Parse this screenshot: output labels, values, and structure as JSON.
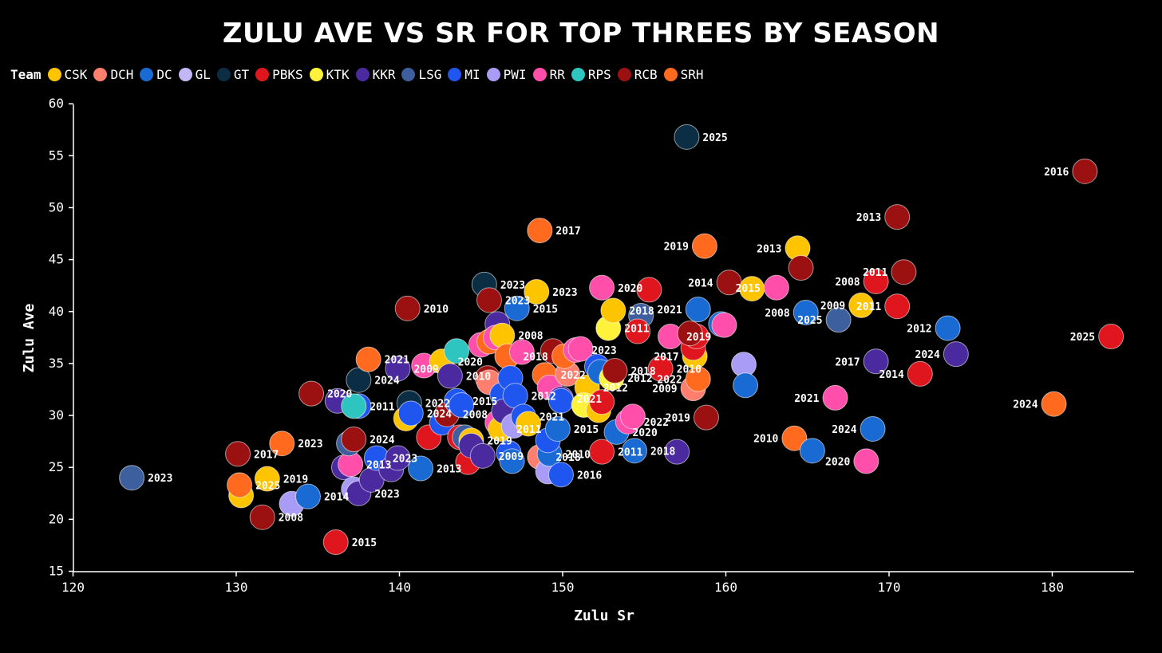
{
  "chart_data": {
    "type": "scatter",
    "title": "ZULU AVE VS SR FOR TOP THREES BY SEASON",
    "xlabel": "Zulu Sr",
    "ylabel": "Zulu Ave",
    "xlim": [
      120,
      185
    ],
    "ylim": [
      15,
      60
    ],
    "xticks": [
      "120",
      "130",
      "140",
      "150",
      "160",
      "170",
      "180"
    ],
    "yticks": [
      "15",
      "20",
      "25",
      "30",
      "35",
      "40",
      "45",
      "50",
      "55",
      "60"
    ],
    "grid": false,
    "legend": {
      "title": "Team",
      "placement": "top-left",
      "entries": [
        {
          "team": "CSK",
          "color": "#FFC400"
        },
        {
          "team": "DCH",
          "color": "#FF7F6E"
        },
        {
          "team": "DC",
          "color": "#1A6AD4"
        },
        {
          "team": "GL",
          "color": "#C3B8F5"
        },
        {
          "team": "GT",
          "color": "#0B2E45"
        },
        {
          "team": "PBKS",
          "color": "#E0161E"
        },
        {
          "team": "KTK",
          "color": "#FFF23A"
        },
        {
          "team": "KKR",
          "color": "#4A2A9E"
        },
        {
          "team": "LSG",
          "color": "#3E5F9E"
        },
        {
          "team": "MI",
          "color": "#2056F0"
        },
        {
          "team": "PWI",
          "color": "#A99CF7"
        },
        {
          "team": "RR",
          "color": "#FF4FAA"
        },
        {
          "team": "RPS",
          "color": "#2EC4C0"
        },
        {
          "team": "RCB",
          "color": "#9B1010"
        },
        {
          "team": "SRH",
          "color": "#FF6A1F"
        }
      ]
    },
    "points": [
      {
        "team": "LSG",
        "x": 123.6,
        "y": 24.0,
        "label": "2023"
      },
      {
        "team": "CSK",
        "x": 130.3,
        "y": 22.3,
        "label": ""
      },
      {
        "team": "SRH",
        "x": 130.2,
        "y": 23.3,
        "label": "2025"
      },
      {
        "team": "RCB",
        "x": 130.1,
        "y": 26.3,
        "label": "2017"
      },
      {
        "team": "RCB",
        "x": 131.6,
        "y": 20.2,
        "label": "2008"
      },
      {
        "team": "CSK",
        "x": 131.9,
        "y": 23.9,
        "label": "2019"
      },
      {
        "team": "SRH",
        "x": 132.8,
        "y": 27.3,
        "label": "2023"
      },
      {
        "team": "PWI",
        "x": 133.4,
        "y": 21.5,
        "label": ""
      },
      {
        "team": "DC",
        "x": 134.4,
        "y": 22.2,
        "label": "2014"
      },
      {
        "team": "RCB",
        "x": 134.6,
        "y": 32.1,
        "label": "2020"
      },
      {
        "team": "KKR",
        "x": 136.2,
        "y": 31.4,
        "label": ""
      },
      {
        "team": "PBKS",
        "x": 136.1,
        "y": 17.8,
        "label": "2015"
      },
      {
        "team": "KKR",
        "x": 136.6,
        "y": 25.0,
        "label": ""
      },
      {
        "team": "RR",
        "x": 137.0,
        "y": 25.3,
        "label": "2013"
      },
      {
        "team": "LSG",
        "x": 136.9,
        "y": 27.3,
        "label": ""
      },
      {
        "team": "RCB",
        "x": 137.2,
        "y": 27.7,
        "label": "2024"
      },
      {
        "team": "MI",
        "x": 137.5,
        "y": 30.9,
        "label": ""
      },
      {
        "team": "RPS",
        "x": 137.2,
        "y": 30.9,
        "label": "2011"
      },
      {
        "team": "GT",
        "x": 137.5,
        "y": 33.4,
        "label": "2024"
      },
      {
        "team": "PWI",
        "x": 137.2,
        "y": 22.9,
        "label": ""
      },
      {
        "team": "KKR",
        "x": 137.5,
        "y": 22.5,
        "label": "2023"
      },
      {
        "team": "SRH",
        "x": 138.1,
        "y": 35.4,
        "label": "2021"
      },
      {
        "team": "KKR",
        "x": 138.3,
        "y": 23.8,
        "label": ""
      },
      {
        "team": "MI",
        "x": 138.6,
        "y": 25.9,
        "label": "2023"
      },
      {
        "team": "KKR",
        "x": 139.5,
        "y": 24.8,
        "label": ""
      },
      {
        "team": "KKR",
        "x": 139.9,
        "y": 25.9,
        "label": ""
      },
      {
        "team": "KKR",
        "x": 139.9,
        "y": 34.5,
        "label": "2009"
      },
      {
        "team": "RCB",
        "x": 140.5,
        "y": 40.3,
        "label": "2010"
      },
      {
        "team": "CSK",
        "x": 140.4,
        "y": 29.7,
        "label": ""
      },
      {
        "team": "GT",
        "x": 140.6,
        "y": 31.2,
        "label": "2022"
      },
      {
        "team": "MI",
        "x": 140.7,
        "y": 30.2,
        "label": "2024"
      },
      {
        "team": "DC",
        "x": 141.3,
        "y": 24.9,
        "label": "2013"
      },
      {
        "team": "RR",
        "x": 141.5,
        "y": 34.8,
        "label": ""
      },
      {
        "team": "PBKS",
        "x": 141.8,
        "y": 27.9,
        "label": ""
      },
      {
        "team": "CSK",
        "x": 142.6,
        "y": 35.2,
        "label": "2020"
      },
      {
        "team": "MI",
        "x": 142.6,
        "y": 29.3,
        "label": ""
      },
      {
        "team": "RCB",
        "x": 142.9,
        "y": 30.1,
        "label": "2008"
      },
      {
        "team": "KKR",
        "x": 143.1,
        "y": 33.8,
        "label": "2010"
      },
      {
        "team": "RPS",
        "x": 143.5,
        "y": 36.2,
        "label": ""
      },
      {
        "team": "MI",
        "x": 143.5,
        "y": 31.4,
        "label": "2015"
      },
      {
        "team": "MI",
        "x": 143.8,
        "y": 31.0,
        "label": ""
      },
      {
        "team": "PBKS",
        "x": 143.7,
        "y": 27.9,
        "label": ""
      },
      {
        "team": "LSG",
        "x": 144.0,
        "y": 27.9,
        "label": ""
      },
      {
        "team": "PBKS",
        "x": 144.2,
        "y": 25.5,
        "label": ""
      },
      {
        "team": "CSK",
        "x": 144.4,
        "y": 27.6,
        "label": "2019"
      },
      {
        "team": "KKR",
        "x": 144.4,
        "y": 27.1,
        "label": ""
      },
      {
        "team": "KKR",
        "x": 145.1,
        "y": 26.1,
        "label": "2009"
      },
      {
        "team": "RR",
        "x": 145.0,
        "y": 36.8,
        "label": ""
      },
      {
        "team": "GT",
        "x": 145.2,
        "y": 42.6,
        "label": "2023"
      },
      {
        "team": "RCB",
        "x": 145.5,
        "y": 41.1,
        "label": "2023"
      },
      {
        "team": "RCB",
        "x": 145.4,
        "y": 33.6,
        "label": ""
      },
      {
        "team": "DCH",
        "x": 145.5,
        "y": 33.2,
        "label": ""
      },
      {
        "team": "SRH",
        "x": 145.5,
        "y": 37.1,
        "label": ""
      },
      {
        "team": "KKR",
        "x": 146.0,
        "y": 38.8,
        "label": ""
      },
      {
        "team": "RR",
        "x": 145.9,
        "y": 37.5,
        "label": ""
      },
      {
        "team": "CSK",
        "x": 146.3,
        "y": 37.7,
        "label": "2008"
      },
      {
        "team": "RR",
        "x": 146.0,
        "y": 29.3,
        "label": ""
      },
      {
        "team": "CSK",
        "x": 146.2,
        "y": 28.7,
        "label": "2011"
      },
      {
        "team": "MI",
        "x": 146.3,
        "y": 32.0,
        "label": ""
      },
      {
        "team": "KKR",
        "x": 146.4,
        "y": 30.4,
        "label": ""
      },
      {
        "team": "MI",
        "x": 146.7,
        "y": 26.4,
        "label": ""
      },
      {
        "team": "DC",
        "x": 146.9,
        "y": 25.6,
        "label": ""
      },
      {
        "team": "SRH",
        "x": 146.6,
        "y": 35.7,
        "label": "2018"
      },
      {
        "team": "MI",
        "x": 146.8,
        "y": 33.6,
        "label": ""
      },
      {
        "team": "PWI",
        "x": 147.0,
        "y": 29.0,
        "label": ""
      },
      {
        "team": "MI",
        "x": 147.1,
        "y": 31.9,
        "label": "2012"
      },
      {
        "team": "DC",
        "x": 147.2,
        "y": 40.3,
        "label": "2015"
      },
      {
        "team": "RR",
        "x": 147.5,
        "y": 36.1,
        "label": ""
      },
      {
        "team": "MI",
        "x": 147.6,
        "y": 29.9,
        "label": "2021"
      },
      {
        "team": "CSK",
        "x": 147.9,
        "y": 29.2,
        "label": ""
      },
      {
        "team": "CSK",
        "x": 148.4,
        "y": 41.9,
        "label": "2023"
      },
      {
        "team": "DCH",
        "x": 148.6,
        "y": 26.0,
        "label": "2018"
      },
      {
        "team": "SRH",
        "x": 148.6,
        "y": 47.8,
        "label": "2017"
      },
      {
        "team": "PWI",
        "x": 149.1,
        "y": 24.6,
        "label": ""
      },
      {
        "team": "DC",
        "x": 149.2,
        "y": 26.3,
        "label": "2010"
      },
      {
        "team": "SRH",
        "x": 148.9,
        "y": 33.9,
        "label": "2022"
      },
      {
        "team": "RR",
        "x": 149.2,
        "y": 32.7,
        "label": ""
      },
      {
        "team": "MI",
        "x": 149.1,
        "y": 27.6,
        "label": ""
      },
      {
        "team": "RCB",
        "x": 149.4,
        "y": 36.2,
        "label": ""
      },
      {
        "team": "DC",
        "x": 149.7,
        "y": 28.7,
        "label": "2015"
      },
      {
        "team": "KKR",
        "x": 149.9,
        "y": 31.6,
        "label": "2021"
      },
      {
        "team": "MI",
        "x": 149.9,
        "y": 31.4,
        "label": ""
      },
      {
        "team": "MI",
        "x": 149.9,
        "y": 24.3,
        "label": "2016"
      },
      {
        "team": "DCH",
        "x": 150.3,
        "y": 34.0,
        "label": ""
      },
      {
        "team": "SRH",
        "x": 150.1,
        "y": 35.7,
        "label": ""
      },
      {
        "team": "RR",
        "x": 150.8,
        "y": 36.3,
        "label": "2023"
      },
      {
        "team": "RR",
        "x": 151.1,
        "y": 36.4,
        "label": ""
      },
      {
        "team": "CSK",
        "x": 151.5,
        "y": 32.7,
        "label": "2012"
      },
      {
        "team": "KTK",
        "x": 151.3,
        "y": 31.0,
        "label": ""
      },
      {
        "team": "MI",
        "x": 152.1,
        "y": 34.7,
        "label": ""
      },
      {
        "team": "DC",
        "x": 152.3,
        "y": 34.2,
        "label": ""
      },
      {
        "team": "CSK",
        "x": 152.2,
        "y": 30.5,
        "label": ""
      },
      {
        "team": "PBKS",
        "x": 152.4,
        "y": 26.5,
        "label": "2011"
      },
      {
        "team": "RR",
        "x": 152.4,
        "y": 42.3,
        "label": "2020"
      },
      {
        "team": "PBKS",
        "x": 152.4,
        "y": 31.3,
        "label": ""
      },
      {
        "team": "KTK",
        "x": 152.8,
        "y": 38.4,
        "label": "2011"
      },
      {
        "team": "CSK",
        "x": 153.1,
        "y": 40.1,
        "label": "2018"
      },
      {
        "team": "KTK",
        "x": 153.0,
        "y": 33.6,
        "label": "2012"
      },
      {
        "team": "RCB",
        "x": 153.2,
        "y": 34.3,
        "label": "2018"
      },
      {
        "team": "DC",
        "x": 153.3,
        "y": 28.4,
        "label": "2020"
      },
      {
        "team": "RR",
        "x": 154.0,
        "y": 29.4,
        "label": "2022"
      },
      {
        "team": "RR",
        "x": 154.3,
        "y": 29.9,
        "label": ""
      },
      {
        "team": "DC",
        "x": 154.4,
        "y": 26.6,
        "label": "2018"
      },
      {
        "team": "LSG",
        "x": 154.8,
        "y": 39.6,
        "label": ""
      },
      {
        "team": "PBKS",
        "x": 154.6,
        "y": 38.1,
        "label": ""
      },
      {
        "team": "PBKS",
        "x": 155.3,
        "y": 42.1,
        "label": ""
      },
      {
        "team": "PBKS",
        "x": 156.0,
        "y": 34.5,
        "label": "2010"
      },
      {
        "team": "RR",
        "x": 156.6,
        "y": 37.6,
        "label": "2019"
      },
      {
        "team": "KKR",
        "x": 157.0,
        "y": 26.5,
        "label": ""
      },
      {
        "team": "GT",
        "x": 157.6,
        "y": 56.8,
        "label": "2025"
      },
      {
        "team": "DC",
        "x": 158.3,
        "y": 40.2,
        "label": "2021"
      },
      {
        "team": "DCH",
        "x": 158.0,
        "y": 32.6,
        "label": "2009"
      },
      {
        "team": "SRH",
        "x": 158.3,
        "y": 33.5,
        "label": "2022"
      },
      {
        "team": "CSK",
        "x": 158.1,
        "y": 35.7,
        "label": "2017"
      },
      {
        "team": "PBKS",
        "x": 158.0,
        "y": 36.5,
        "label": ""
      },
      {
        "team": "PBKS",
        "x": 158.2,
        "y": 37.6,
        "label": ""
      },
      {
        "team": "RCB",
        "x": 157.8,
        "y": 37.9,
        "label": ""
      },
      {
        "team": "RCB",
        "x": 158.8,
        "y": 29.8,
        "label": "2019"
      },
      {
        "team": "SRH",
        "x": 158.7,
        "y": 46.3,
        "label": "2019"
      },
      {
        "team": "DC",
        "x": 159.7,
        "y": 38.8,
        "label": ""
      },
      {
        "team": "RR",
        "x": 159.9,
        "y": 38.7,
        "label": ""
      },
      {
        "team": "RCB",
        "x": 160.2,
        "y": 42.8,
        "label": "2014"
      },
      {
        "team": "PWI",
        "x": 161.1,
        "y": 34.9,
        "label": ""
      },
      {
        "team": "DC",
        "x": 161.2,
        "y": 32.9,
        "label": ""
      },
      {
        "team": "CSK",
        "x": 161.6,
        "y": 42.2,
        "label": ""
      },
      {
        "team": "RR",
        "x": 163.1,
        "y": 42.3,
        "label": "2015"
      },
      {
        "team": "SRH",
        "x": 164.2,
        "y": 27.8,
        "label": "2010"
      },
      {
        "team": "CSK",
        "x": 164.4,
        "y": 46.1,
        "label": "2013"
      },
      {
        "team": "RCB",
        "x": 164.6,
        "y": 44.2,
        "label": ""
      },
      {
        "team": "DC",
        "x": 164.9,
        "y": 39.9,
        "label": "2008"
      },
      {
        "team": "DC",
        "x": 165.3,
        "y": 26.6,
        "label": ""
      },
      {
        "team": "LSG",
        "x": 166.9,
        "y": 39.2,
        "label": "2025"
      },
      {
        "team": "RR",
        "x": 166.7,
        "y": 31.7,
        "label": "2021"
      },
      {
        "team": "CSK",
        "x": 168.3,
        "y": 40.6,
        "label": "2009"
      },
      {
        "team": "RR",
        "x": 168.6,
        "y": 25.6,
        "label": "2020"
      },
      {
        "team": "DC",
        "x": 169.0,
        "y": 28.7,
        "label": "2024"
      },
      {
        "team": "KKR",
        "x": 169.2,
        "y": 35.2,
        "label": "2017"
      },
      {
        "team": "PBKS",
        "x": 169.2,
        "y": 42.9,
        "label": "2008"
      },
      {
        "team": "PBKS",
        "x": 170.5,
        "y": 40.5,
        "label": "2011"
      },
      {
        "team": "RCB",
        "x": 170.5,
        "y": 49.1,
        "label": "2013"
      },
      {
        "team": "RCB",
        "x": 170.9,
        "y": 43.8,
        "label": "2011"
      },
      {
        "team": "PBKS",
        "x": 171.9,
        "y": 34.0,
        "label": "2014"
      },
      {
        "team": "DC",
        "x": 173.6,
        "y": 38.4,
        "label": "2012"
      },
      {
        "team": "KKR",
        "x": 174.1,
        "y": 35.9,
        "label": "2024"
      },
      {
        "team": "SRH",
        "x": 180.1,
        "y": 31.1,
        "label": "2024"
      },
      {
        "team": "RCB",
        "x": 182.0,
        "y": 53.5,
        "label": "2016"
      },
      {
        "team": "PBKS",
        "x": 183.6,
        "y": 37.6,
        "label": "2025"
      }
    ]
  }
}
